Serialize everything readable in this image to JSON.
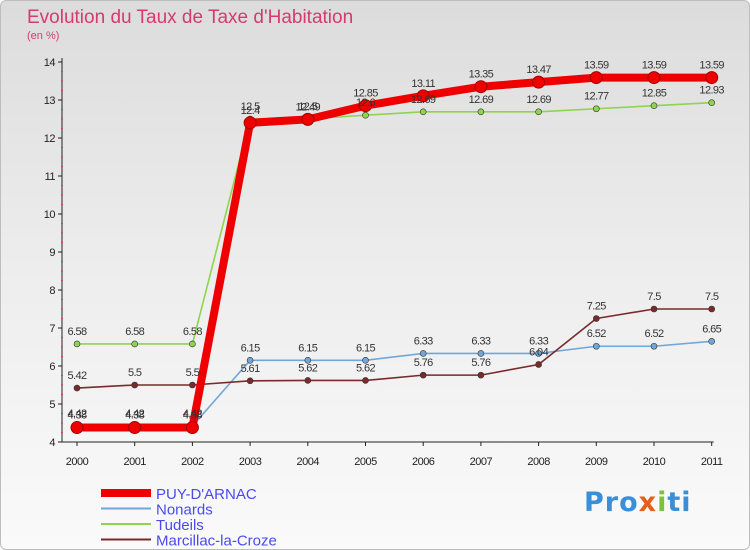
{
  "chart_data": {
    "type": "line",
    "title": "Evolution du Taux de Taxe d'Habitation",
    "subtitle": "(en %)",
    "x": [
      "2000",
      "2001",
      "2002",
      "2003",
      "2004",
      "2005",
      "2006",
      "2007",
      "2008",
      "2009",
      "2010",
      "2011"
    ],
    "ylim": [
      4,
      14
    ],
    "yticks": [
      "4",
      "5",
      "6",
      "7",
      "8",
      "9",
      "10",
      "11",
      "12",
      "13",
      "14"
    ],
    "grid": false,
    "legend_position": "bottom-left",
    "series": [
      {
        "name": "PUY-D'ARNAC",
        "color": "#ee0000",
        "values": [
          4.38,
          4.38,
          4.38,
          12.4,
          12.49,
          12.85,
          13.11,
          13.35,
          13.47,
          13.59,
          13.59,
          13.59
        ],
        "labels": [
          "4.38",
          "4.38",
          "4.38",
          "12.4",
          "12.49",
          "12.85",
          "13.11",
          "13.35",
          "13.47",
          "13.59",
          "13.59",
          "13.59"
        ]
      },
      {
        "name": "Nonards",
        "color": "#6fa8d8",
        "values": [
          4.42,
          4.42,
          4.42,
          6.15,
          6.15,
          6.15,
          6.33,
          6.33,
          6.33,
          6.52,
          6.52,
          6.65
        ],
        "labels": [
          "4.42",
          "4.42",
          "4.42",
          "6.15",
          "6.15",
          "6.15",
          "6.33",
          "6.33",
          "6.33",
          "6.52",
          "6.52",
          "6.65"
        ]
      },
      {
        "name": "Tudeils",
        "color": "#8fd34f",
        "values": [
          6.58,
          6.58,
          6.58,
          12.5,
          12.5,
          12.6,
          12.69,
          12.69,
          12.69,
          12.77,
          12.85,
          12.93
        ],
        "labels": [
          "6.58",
          "6.58",
          "6.58",
          "12.5",
          "12.5",
          "12.6",
          "12.69",
          "12.69",
          "12.69",
          "12.77",
          "12.85",
          "12.93"
        ]
      },
      {
        "name": "Marcillac-la-Croze",
        "color": "#7a2a2a",
        "values": [
          5.42,
          5.5,
          5.5,
          5.61,
          5.62,
          5.62,
          5.76,
          5.76,
          6.04,
          7.25,
          7.5,
          7.5
        ],
        "labels": [
          "5.42",
          "5.5",
          "5.5",
          "5.61",
          "5.62",
          "5.62",
          "5.76",
          "5.76",
          "6.04",
          "7.25",
          "7.5",
          "7.5"
        ]
      }
    ]
  },
  "logo": {
    "part1": "Pro",
    "part2": "x",
    "part3": "i",
    "part4": "ti"
  }
}
